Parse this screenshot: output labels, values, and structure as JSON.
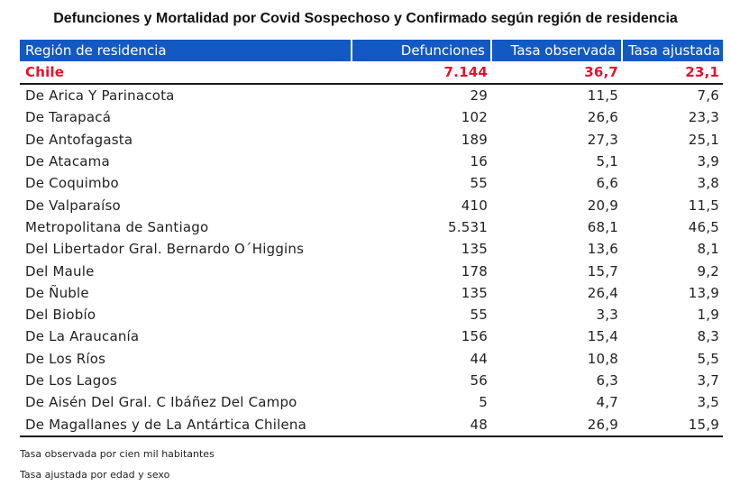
{
  "title": "Defunciones y Mortalidad por Covid Sospechoso y Confirmado  según región de residencia",
  "headers": [
    "Región de residencia",
    "Defunciones",
    "Tasa observada",
    "Tasa ajustada"
  ],
  "total": {
    "region": "Chile",
    "defunciones": "7.144",
    "tasa_observada": "36,7",
    "tasa_ajustada": "23,1"
  },
  "rows": [
    {
      "region": "De Arica Y Parinacota",
      "defunciones": "29",
      "tasa_observada": "11,5",
      "tasa_ajustada": "7,6"
    },
    {
      "region": "De Tarapacá",
      "defunciones": "102",
      "tasa_observada": "26,6",
      "tasa_ajustada": "23,3"
    },
    {
      "region": "De Antofagasta",
      "defunciones": "189",
      "tasa_observada": "27,3",
      "tasa_ajustada": "25,1"
    },
    {
      "region": "De Atacama",
      "defunciones": "16",
      "tasa_observada": "5,1",
      "tasa_ajustada": "3,9"
    },
    {
      "region": "De Coquimbo",
      "defunciones": "55",
      "tasa_observada": "6,6",
      "tasa_ajustada": "3,8"
    },
    {
      "region": "De Valparaíso",
      "defunciones": "410",
      "tasa_observada": "20,9",
      "tasa_ajustada": "11,5"
    },
    {
      "region": "Metropolitana de Santiago",
      "defunciones": "5.531",
      "tasa_observada": "68,1",
      "tasa_ajustada": "46,5"
    },
    {
      "region": "Del Libertador Gral. Bernardo O´Higgins",
      "defunciones": "135",
      "tasa_observada": "13,6",
      "tasa_ajustada": "8,1"
    },
    {
      "region": "Del Maule",
      "defunciones": "178",
      "tasa_observada": "15,7",
      "tasa_ajustada": "9,2"
    },
    {
      "region": "De Ñuble",
      "defunciones": "135",
      "tasa_observada": "26,4",
      "tasa_ajustada": "13,9"
    },
    {
      "region": "Del Biobío",
      "defunciones": "55",
      "tasa_observada": "3,3",
      "tasa_ajustada": "1,9"
    },
    {
      "region": "De La Araucanía",
      "defunciones": "156",
      "tasa_observada": "15,4",
      "tasa_ajustada": "8,3"
    },
    {
      "region": "De Los Ríos",
      "defunciones": "44",
      "tasa_observada": "10,8",
      "tasa_ajustada": "5,5"
    },
    {
      "region": "De Los Lagos",
      "defunciones": "56",
      "tasa_observada": "6,3",
      "tasa_ajustada": "3,7"
    },
    {
      "region": "De Aisén Del Gral. C Ibáñez Del Campo",
      "defunciones": "5",
      "tasa_observada": "4,7",
      "tasa_ajustada": "3,5"
    },
    {
      "region": "De Magallanes y de La Antártica Chilena",
      "defunciones": "48",
      "tasa_observada": "26,9",
      "tasa_ajustada": "15,9"
    }
  ],
  "notes": [
    "Tasa observada por cien mil habitantes",
    "Tasa ajustada por edad y sexo"
  ],
  "colors": {
    "header_bg": "#1259c3",
    "header_text": "#ffffff",
    "total_text": "#e8112d"
  }
}
